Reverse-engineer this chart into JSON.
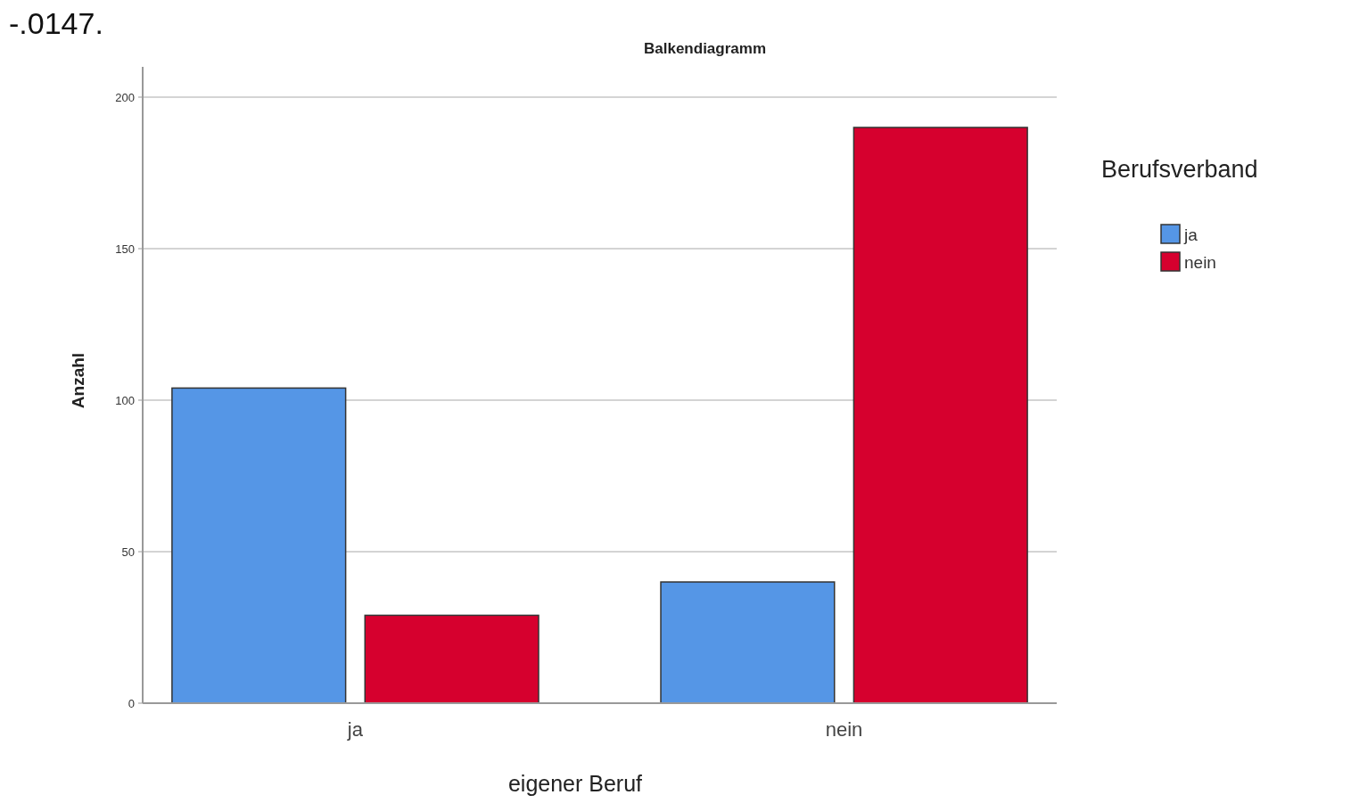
{
  "chart_data": {
    "type": "bar",
    "title": "Balkendiagramm",
    "xlabel": "eigener Beruf",
    "ylabel": "Anzahl",
    "legend_title": "Berufsverband",
    "categories": [
      "ja",
      "nein"
    ],
    "series": [
      {
        "name": "ja",
        "color": "#5596e6",
        "values": [
          104,
          40
        ]
      },
      {
        "name": "nein",
        "color": "#d6002e",
        "values": [
          29,
          190
        ]
      }
    ],
    "ylim": [
      0,
      210
    ],
    "yticks": [
      0,
      50,
      100,
      150,
      200
    ],
    "grid": "y",
    "legend": "right",
    "annotations": [
      "-.0147."
    ]
  }
}
